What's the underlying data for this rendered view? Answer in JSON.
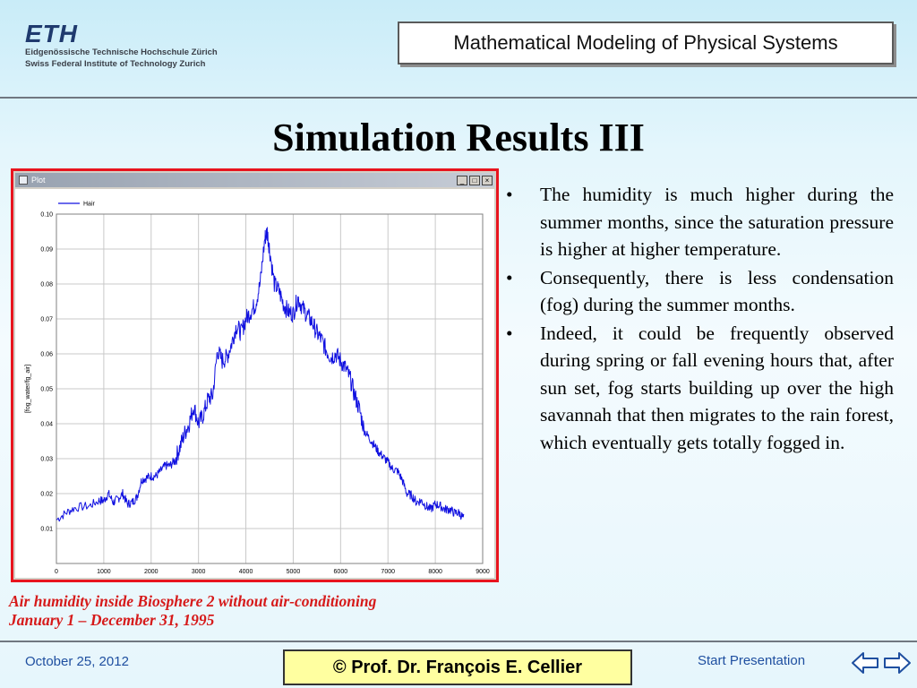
{
  "header": {
    "logo_mark": "ETH",
    "logo_line1": "Eidgenössische Technische Hochschule Zürich",
    "logo_line2": "Swiss Federal Institute of Technology Zurich",
    "course_title": "Mathematical Modeling of Physical Systems"
  },
  "slide": {
    "title": "Simulation Results III",
    "caption_line1": "Air humidity inside Biosphere 2 without air-conditioning",
    "caption_line2": "January 1 – December 31, 1995",
    "bullets": [
      "The humidity is much higher during the summer months, since the saturation pressure is higher at higher temperature.",
      "Consequently, there is less condensation (fog) during the summer months.",
      "Indeed, it could be frequently observed during spring or fall evening hours that, after sun set, fog starts building up over the high savannah that then migrates to the rain forest, which eventually gets totally fogged in."
    ]
  },
  "plot_window": {
    "title": "Plot",
    "btn_min": "_",
    "btn_max": "□",
    "btn_close": "×"
  },
  "footer": {
    "date": "October 25, 2012",
    "author": "©  Prof. Dr. François E. Cellier",
    "start": "Start Presentation"
  },
  "colors": {
    "series": "#1010e0",
    "caption": "#d61a1a",
    "frame": "#e8141e",
    "footer_link": "#1f4fa0"
  },
  "chart_data": {
    "type": "line",
    "title": "",
    "xlabel": "",
    "ylabel": "[fog_water/fg_air]",
    "xlim": [
      0,
      9000
    ],
    "ylim": [
      0,
      0.1
    ],
    "xticks": [
      "0",
      "1000",
      "2000",
      "3000",
      "4000",
      "5000",
      "6000",
      "7000",
      "8000",
      "9000"
    ],
    "yticks": [
      "0.01",
      "0.02",
      "0.03",
      "0.04",
      "0.05",
      "0.06",
      "0.07",
      "0.08",
      "0.09",
      "0.10"
    ],
    "grid": true,
    "legend": "top-left",
    "series": [
      {
        "name": "Hair",
        "x": [
          0,
          200,
          400,
          700,
          900,
          1000,
          1100,
          1200,
          1300,
          1400,
          1500,
          1600,
          1700,
          1800,
          1900,
          2000,
          2100,
          2200,
          2300,
          2400,
          2500,
          2600,
          2700,
          2800,
          2900,
          3000,
          3100,
          3200,
          3300,
          3400,
          3500,
          3600,
          3700,
          3800,
          3900,
          4000,
          4100,
          4200,
          4300,
          4400,
          4450,
          4500,
          4600,
          4700,
          4800,
          4900,
          5000,
          5100,
          5200,
          5300,
          5400,
          5500,
          5600,
          5700,
          5800,
          5900,
          6000,
          6100,
          6200,
          6300,
          6400,
          6500,
          6600,
          6700,
          6800,
          6900,
          7000,
          7100,
          7200,
          7300,
          7400,
          7500,
          7600,
          7700,
          7800,
          7900,
          8000,
          8100,
          8200,
          8300,
          8400,
          8500,
          8600
        ],
        "y": [
          0.0125,
          0.0145,
          0.016,
          0.0165,
          0.018,
          0.018,
          0.02,
          0.0175,
          0.0185,
          0.02,
          0.017,
          0.0175,
          0.019,
          0.024,
          0.0245,
          0.025,
          0.025,
          0.0265,
          0.028,
          0.028,
          0.0295,
          0.033,
          0.037,
          0.04,
          0.045,
          0.04,
          0.0425,
          0.047,
          0.048,
          0.061,
          0.058,
          0.059,
          0.063,
          0.068,
          0.066,
          0.07,
          0.072,
          0.074,
          0.08,
          0.093,
          0.095,
          0.09,
          0.08,
          0.078,
          0.074,
          0.072,
          0.0715,
          0.076,
          0.073,
          0.071,
          0.069,
          0.066,
          0.064,
          0.061,
          0.059,
          0.06,
          0.058,
          0.056,
          0.053,
          0.048,
          0.044,
          0.038,
          0.036,
          0.034,
          0.032,
          0.0305,
          0.029,
          0.027,
          0.0265,
          0.024,
          0.02,
          0.0195,
          0.0175,
          0.018,
          0.0165,
          0.0155,
          0.017,
          0.0165,
          0.0155,
          0.0155,
          0.0145,
          0.0145,
          0.013
        ]
      }
    ]
  }
}
